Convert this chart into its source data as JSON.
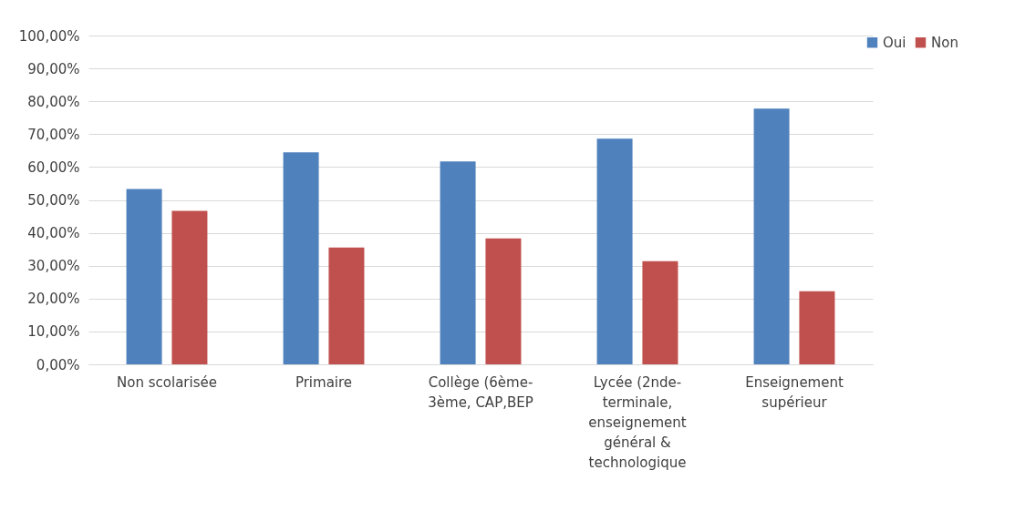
{
  "chart_data": {
    "type": "bar",
    "categories": [
      "Non scolarisée",
      "Primaire",
      "Collège (6ème-3ème, CAP,BEP",
      "Lycée (2nde-terminale, enseignement général & technologique",
      "Enseignement supérieur"
    ],
    "series": [
      {
        "name": "Oui",
        "color": "#4f81bd",
        "values": [
          53.3,
          64.5,
          61.7,
          68.6,
          77.8
        ]
      },
      {
        "name": "Non",
        "color": "#c0504d",
        "values": [
          46.7,
          35.5,
          38.3,
          31.4,
          22.2
        ]
      }
    ],
    "ylim": [
      0,
      100
    ],
    "yticks": [
      {
        "value": 0,
        "label": "0,00%"
      },
      {
        "value": 10,
        "label": "10,00%"
      },
      {
        "value": 20,
        "label": "20,00%"
      },
      {
        "value": 30,
        "label": "30,00%"
      },
      {
        "value": 40,
        "label": "40,00%"
      },
      {
        "value": 50,
        "label": "50,00%"
      },
      {
        "value": 60,
        "label": "60,00%"
      },
      {
        "value": 70,
        "label": "70,00%"
      },
      {
        "value": 80,
        "label": "80,00%"
      },
      {
        "value": 90,
        "label": "90,00%"
      },
      {
        "value": 100,
        "label": "100,00%"
      }
    ],
    "grid": "y",
    "legend": "top right"
  }
}
